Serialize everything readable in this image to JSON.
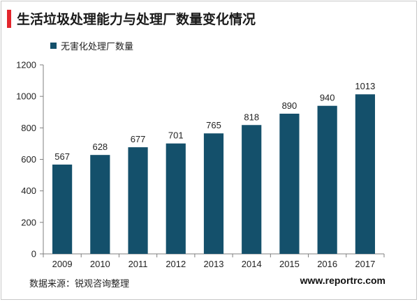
{
  "title": "生活垃圾处理能力与处理厂数量变化情况",
  "source": "数据来源：锐观咨询整理",
  "website": "www.reportrc.com",
  "colors": {
    "accent": "#e3262d",
    "bar": "#14506b"
  },
  "chart_data": {
    "type": "bar",
    "categories": [
      "2009",
      "2010",
      "2011",
      "2012",
      "2013",
      "2014",
      "2015",
      "2016",
      "2017"
    ],
    "series": [
      {
        "name": "无害化处理厂数量",
        "values": [
          567,
          628,
          677,
          701,
          765,
          818,
          890,
          940,
          1013
        ]
      }
    ],
    "ylim": [
      0,
      1200
    ],
    "yticks": [
      0,
      200,
      400,
      600,
      800,
      1000,
      1200
    ],
    "grid": false,
    "legend": "top-left",
    "data_labels": true
  }
}
